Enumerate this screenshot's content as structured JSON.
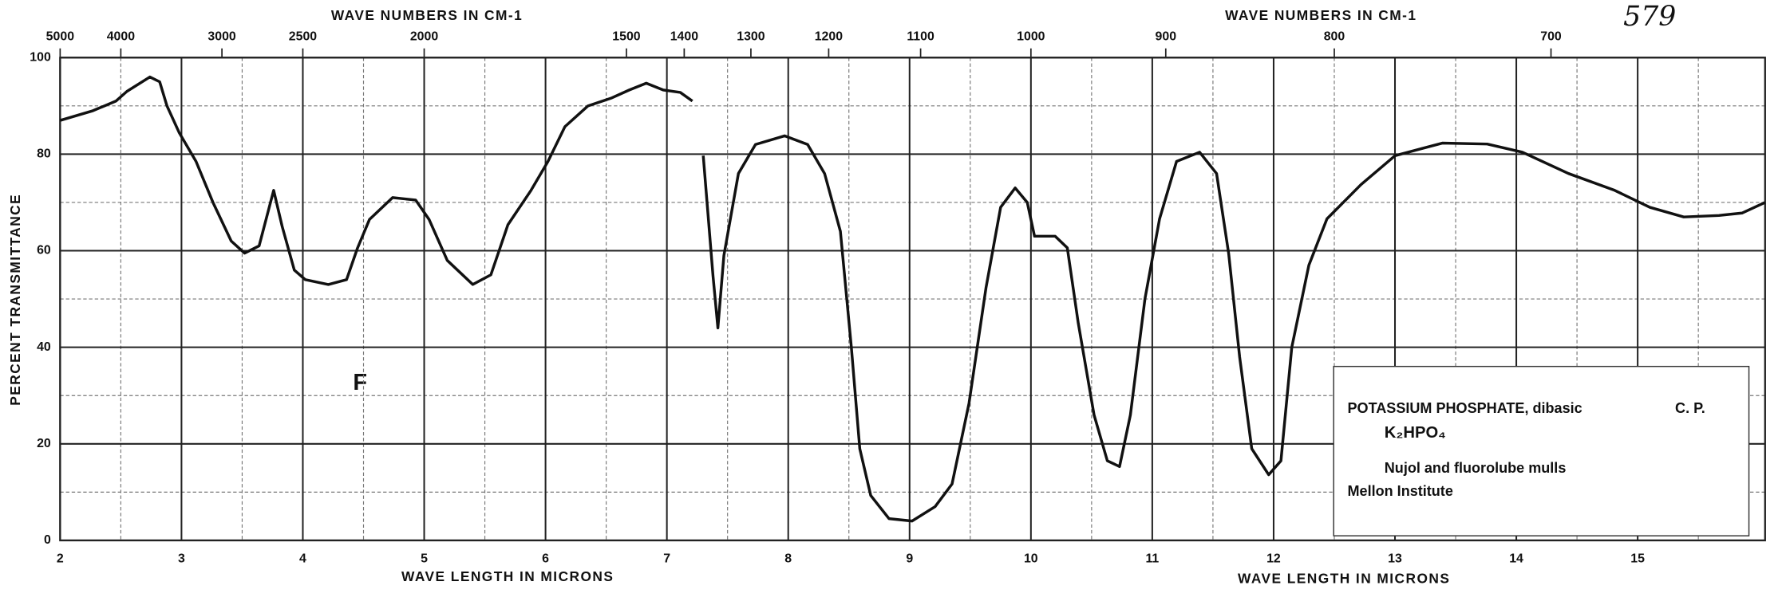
{
  "chart_data": {
    "type": "line",
    "x_title_top_left": "WAVE NUMBERS IN CM-1",
    "x_title_top_right": "WAVE NUMBERS IN CM-1",
    "x_title_bottom_left": "WAVE LENGTH IN MICRONS",
    "x_title_bottom_right": "WAVE LENGTH IN MICRONS",
    "y_title": "PERCENT TRANSMITTANCE",
    "page_number": "579",
    "mark": "F",
    "annotation": {
      "title": "POTASSIUM PHOSPHATE, dibasic",
      "grade": "C. P.",
      "formula": "K₂HPO₄",
      "method": "Nujol and fluorolube mulls",
      "source": "Mellon Institute"
    },
    "color": "#111111",
    "x": [
      2.0,
      2.27,
      2.46,
      2.55,
      2.74,
      2.82,
      2.88,
      2.98,
      3.12,
      3.26,
      3.41,
      3.52,
      3.64,
      3.76,
      3.83,
      3.93,
      4.02,
      4.21,
      4.36,
      4.45,
      4.55,
      4.74,
      4.93,
      5.04,
      5.19,
      5.4,
      5.55,
      5.69,
      5.88,
      6.02,
      6.16,
      6.35,
      6.54,
      6.69,
      6.83,
      6.97,
      7.11,
      7.21,
      7.25,
      7.3,
      7.38,
      7.42,
      7.47,
      7.59,
      7.73,
      7.97,
      8.16,
      8.3,
      8.43,
      8.52,
      8.59,
      8.68,
      8.83,
      9.02,
      9.21,
      9.35,
      9.49,
      9.63,
      9.75,
      9.87,
      9.97,
      10.03,
      10.2,
      10.3,
      10.39,
      10.52,
      10.63,
      10.73,
      10.82,
      10.94,
      11.06,
      11.2,
      11.39,
      11.53,
      11.63,
      11.72,
      11.82,
      11.96,
      12.06,
      12.15,
      12.29,
      12.44,
      12.72,
      13.0,
      13.39,
      13.76,
      14.05,
      14.43,
      14.81,
      15.1,
      15.38,
      15.67,
      15.86,
      16.05
    ],
    "values": [
      87,
      89,
      91,
      93,
      96,
      95,
      90,
      84.5,
      78.5,
      70,
      62,
      59.5,
      61,
      72.5,
      65,
      56,
      54,
      53,
      54,
      60.5,
      66.5,
      71,
      70.5,
      66.5,
      58,
      53,
      55,
      65.4,
      72.5,
      78.5,
      85.7,
      90,
      91.6,
      93.3,
      94.7,
      93.3,
      92.8,
      91,
      null,
      79.7,
      54.7,
      44,
      59,
      76,
      82,
      83.8,
      82,
      76,
      64,
      40,
      19,
      9.3,
      4.5,
      4,
      7,
      11.7,
      28.4,
      52.3,
      69,
      73,
      70,
      63,
      63,
      60.6,
      45,
      26,
      16.5,
      15.3,
      26,
      50,
      66.6,
      78.5,
      80.4,
      76,
      59.4,
      38,
      19,
      13.6,
      16.5,
      40,
      57,
      66.6,
      73.7,
      79.7,
      82.3,
      82.1,
      80.4,
      76,
      72.5,
      69,
      67,
      67.3,
      67.8,
      70
    ],
    "xlim": [
      2,
      16.05
    ],
    "ylim": [
      0,
      100
    ],
    "xticks": [
      2,
      3,
      4,
      5,
      6,
      7,
      8,
      9,
      10,
      11,
      12,
      13,
      14,
      15
    ],
    "yticks": [
      0,
      20,
      40,
      60,
      80,
      100
    ],
    "x_minor_ticks": [
      2.5,
      3.5,
      4.5,
      5.5,
      6.5,
      7.5,
      8.5,
      9.5,
      10.5,
      11.5,
      12.5,
      13.5,
      14.5,
      15.5
    ],
    "y_minor_ticks": [
      10,
      30,
      50,
      70,
      90
    ],
    "x2ticks": [
      5000,
      4000,
      3000,
      2500,
      2000,
      1500,
      1400,
      1300,
      1200,
      1100,
      1000,
      900,
      800,
      700
    ],
    "grid": true
  }
}
